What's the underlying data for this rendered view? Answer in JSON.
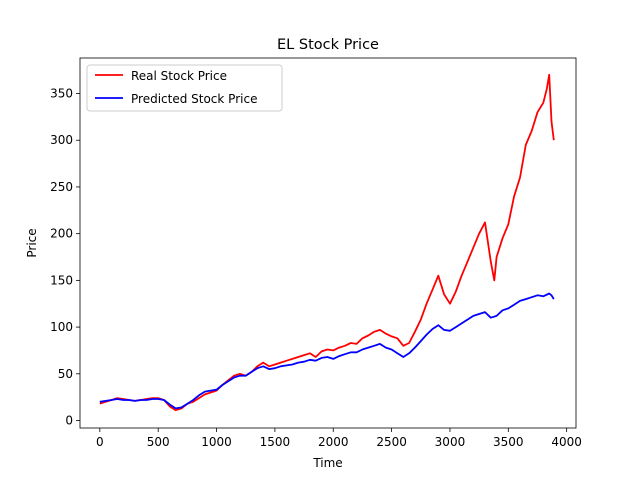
{
  "chart_data": {
    "type": "line",
    "title": "EL Stock Price",
    "xlabel": "Time",
    "ylabel": "Price",
    "xlim": [
      -170,
      4080
    ],
    "ylim": [
      -8,
      388
    ],
    "xticks": [
      0,
      500,
      1000,
      1500,
      2000,
      2500,
      3000,
      3500,
      4000
    ],
    "yticks": [
      0,
      50,
      100,
      150,
      200,
      250,
      300,
      350
    ],
    "grid": false,
    "legend_position": "upper left",
    "series": [
      {
        "name": "Real Stock Price",
        "color": "#ff0000",
        "x": [
          0,
          50,
          100,
          150,
          200,
          250,
          300,
          350,
          400,
          450,
          500,
          550,
          600,
          650,
          700,
          750,
          800,
          850,
          900,
          950,
          1000,
          1050,
          1100,
          1150,
          1200,
          1250,
          1300,
          1350,
          1400,
          1450,
          1500,
          1550,
          1600,
          1650,
          1700,
          1750,
          1800,
          1850,
          1900,
          1950,
          2000,
          2050,
          2100,
          2150,
          2200,
          2250,
          2300,
          2350,
          2400,
          2450,
          2500,
          2550,
          2600,
          2650,
          2700,
          2750,
          2800,
          2850,
          2900,
          2950,
          3000,
          3050,
          3100,
          3150,
          3200,
          3250,
          3300,
          3350,
          3380,
          3400,
          3450,
          3500,
          3550,
          3600,
          3650,
          3700,
          3750,
          3800,
          3830,
          3850,
          3870,
          3890
        ],
        "y": [
          18,
          20,
          22,
          24,
          23,
          22,
          21,
          22,
          23,
          24,
          24,
          22,
          15,
          11,
          13,
          18,
          20,
          24,
          28,
          30,
          32,
          38,
          43,
          48,
          50,
          48,
          52,
          58,
          62,
          58,
          60,
          62,
          64,
          66,
          68,
          70,
          72,
          68,
          74,
          76,
          75,
          78,
          80,
          83,
          82,
          88,
          91,
          95,
          97,
          93,
          90,
          88,
          80,
          83,
          95,
          108,
          125,
          140,
          155,
          135,
          125,
          138,
          155,
          170,
          185,
          200,
          212,
          170,
          150,
          175,
          195,
          210,
          240,
          260,
          295,
          310,
          330,
          340,
          355,
          370,
          320,
          300
        ]
      },
      {
        "name": "Predicted Stock Price",
        "color": "#0000ff",
        "x": [
          0,
          50,
          100,
          150,
          200,
          250,
          300,
          350,
          400,
          450,
          500,
          550,
          600,
          650,
          700,
          750,
          800,
          850,
          900,
          950,
          1000,
          1050,
          1100,
          1150,
          1200,
          1250,
          1300,
          1350,
          1400,
          1450,
          1500,
          1550,
          1600,
          1650,
          1700,
          1750,
          1800,
          1850,
          1900,
          1950,
          2000,
          2050,
          2100,
          2150,
          2200,
          2250,
          2300,
          2350,
          2400,
          2450,
          2500,
          2550,
          2600,
          2650,
          2700,
          2750,
          2800,
          2850,
          2900,
          2950,
          3000,
          3050,
          3100,
          3150,
          3200,
          3250,
          3300,
          3350,
          3400,
          3450,
          3500,
          3550,
          3600,
          3650,
          3700,
          3750,
          3800,
          3850,
          3870,
          3890
        ],
        "y": [
          20,
          21,
          22,
          23,
          22,
          22,
          21,
          22,
          22,
          23,
          23,
          22,
          17,
          13,
          14,
          18,
          22,
          27,
          31,
          32,
          33,
          38,
          42,
          46,
          48,
          48,
          52,
          56,
          58,
          55,
          56,
          58,
          59,
          60,
          62,
          63,
          65,
          64,
          67,
          68,
          66,
          69,
          71,
          73,
          73,
          76,
          78,
          80,
          82,
          78,
          76,
          72,
          68,
          72,
          78,
          85,
          92,
          98,
          102,
          97,
          96,
          100,
          104,
          108,
          112,
          114,
          116,
          110,
          112,
          118,
          120,
          124,
          128,
          130,
          132,
          134,
          133,
          136,
          134,
          130
        ]
      }
    ]
  }
}
